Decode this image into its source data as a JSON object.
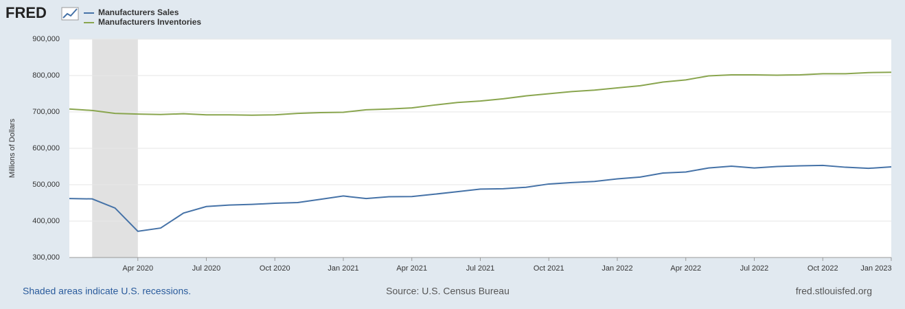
{
  "chart_data": {
    "type": "line",
    "logo": "FRED",
    "ylabel": "Millions of Dollars",
    "note": "Shaded areas indicate U.S. recessions.",
    "source": "Source: U.S. Census Bureau",
    "site": "fred.stlouisfed.org",
    "x": [
      "2020-01",
      "2020-02",
      "2020-03",
      "2020-04",
      "2020-05",
      "2020-06",
      "2020-07",
      "2020-08",
      "2020-09",
      "2020-10",
      "2020-11",
      "2020-12",
      "2021-01",
      "2021-02",
      "2021-03",
      "2021-04",
      "2021-05",
      "2021-06",
      "2021-07",
      "2021-08",
      "2021-09",
      "2021-10",
      "2021-11",
      "2021-12",
      "2022-01",
      "2022-02",
      "2022-03",
      "2022-04",
      "2022-05",
      "2022-06",
      "2022-07",
      "2022-08",
      "2022-09",
      "2022-10",
      "2022-11",
      "2022-12",
      "2023-01"
    ],
    "xticks": [
      {
        "value": "2020-04",
        "label": "Apr 2020"
      },
      {
        "value": "2020-07",
        "label": "Jul 2020"
      },
      {
        "value": "2020-10",
        "label": "Oct 2020"
      },
      {
        "value": "2021-01",
        "label": "Jan 2021"
      },
      {
        "value": "2021-04",
        "label": "Apr 2021"
      },
      {
        "value": "2021-07",
        "label": "Jul 2021"
      },
      {
        "value": "2021-10",
        "label": "Oct 2021"
      },
      {
        "value": "2022-01",
        "label": "Jan 2022"
      },
      {
        "value": "2022-04",
        "label": "Apr 2022"
      },
      {
        "value": "2022-07",
        "label": "Jul 2022"
      },
      {
        "value": "2022-10",
        "label": "Oct 2022"
      },
      {
        "value": "2023-01",
        "label": "Jan 2023"
      }
    ],
    "recessions": [
      {
        "start": "2020-02",
        "end": "2020-04"
      }
    ],
    "ylim": [
      300000,
      900000
    ],
    "yticks": [
      {
        "value": 300000,
        "label": "300,000"
      },
      {
        "value": 400000,
        "label": "400,000"
      },
      {
        "value": 500000,
        "label": "500,000"
      },
      {
        "value": 600000,
        "label": "600,000"
      },
      {
        "value": 700000,
        "label": "700,000"
      },
      {
        "value": 800000,
        "label": "800,000"
      },
      {
        "value": 900000,
        "label": "900,000"
      }
    ],
    "grid": true,
    "series": [
      {
        "name": "Manufacturers Sales",
        "color": "#4572a7",
        "values": [
          462000,
          461000,
          436000,
          372000,
          381000,
          422000,
          440000,
          444000,
          446000,
          449000,
          451000,
          460000,
          469000,
          462000,
          467000,
          467500,
          474000,
          481000,
          488000,
          489000,
          493000,
          502000,
          506000,
          509000,
          516000,
          521000,
          532000,
          535000,
          546000,
          551000,
          546000,
          550000,
          552000,
          553000,
          548000,
          545000,
          549000
        ]
      },
      {
        "name": "Manufacturers Inventories",
        "color": "#89a54e",
        "values": [
          708000,
          704000,
          696000,
          694000,
          693000,
          695000,
          692000,
          692000,
          691000,
          692000,
          696000,
          698000,
          699000,
          706000,
          708000,
          711000,
          719000,
          726000,
          730000,
          736000,
          744000,
          750000,
          756000,
          760000,
          766000,
          772000,
          782000,
          788000,
          799000,
          802000,
          802000,
          801000,
          802000,
          805000,
          805000,
          808000,
          809000
        ]
      }
    ]
  }
}
